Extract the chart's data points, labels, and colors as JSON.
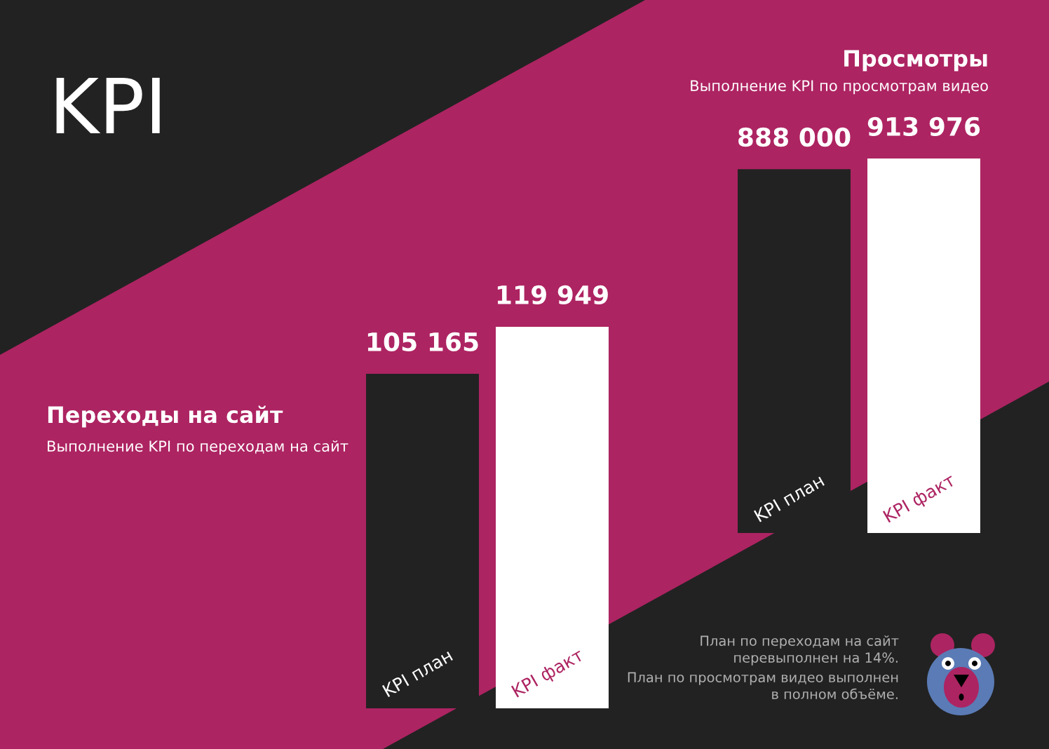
{
  "chart_data": [
    {
      "type": "bar",
      "title": "Переходы на сайт",
      "subtitle": "Выполнение KPI по переходам на сайт",
      "categories": [
        "KPI план",
        "KPI факт"
      ],
      "values": [
        105165,
        119949
      ],
      "colors": [
        "#222222",
        "#ffffff"
      ],
      "value_labels": [
        "105 165",
        "119 949"
      ],
      "annotations": [
        "KPI"
      ]
    },
    {
      "type": "bar",
      "title": "Просмотры",
      "subtitle": "Выполнение KPI по просмотрам видео",
      "categories": [
        "KPI план",
        "KPI факт"
      ],
      "values": [
        888000,
        913976
      ],
      "colors": [
        "#222222",
        "#ffffff"
      ],
      "value_labels": [
        "888 000",
        "913 976"
      ],
      "annotations": [
        "План по переходам на сайт\nперевыполнен на 14%.",
        "План по просмотрам видео выполнен\nв полном объёме."
      ]
    }
  ]
}
